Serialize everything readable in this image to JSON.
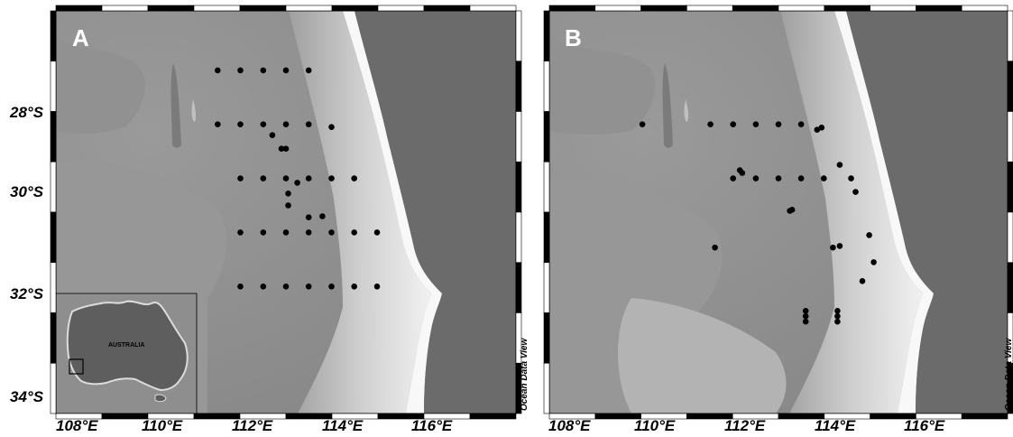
{
  "colors": {
    "ocean_deep": "#8a8a8a",
    "ocean_mid": "#a3a3a3",
    "shelf": "#f4f4f4",
    "land": "#6b6b6b",
    "station": "#000000",
    "frame_dark": "#000000",
    "frame_light": "#ffffff"
  },
  "lat_labels": [
    "28°S",
    "30°S",
    "32°S",
    "34°S"
  ],
  "lon_labels": [
    "108°E",
    "110°E",
    "112°E",
    "114°E",
    "116°E"
  ],
  "credit": "Ocean Data View",
  "panels": [
    {
      "label": "A",
      "inset": {
        "label": "AUSTRALIA"
      },
      "stations": [
        [
          111.5,
          28
        ],
        [
          112,
          28
        ],
        [
          112.5,
          28
        ],
        [
          113,
          28
        ],
        [
          113.5,
          28
        ],
        [
          111.5,
          29
        ],
        [
          112,
          29
        ],
        [
          112.5,
          29
        ],
        [
          112.7,
          29.2
        ],
        [
          112.9,
          29.45
        ],
        [
          113,
          29.45
        ],
        [
          113,
          29
        ],
        [
          113.5,
          29
        ],
        [
          114,
          29.05
        ],
        [
          112,
          30
        ],
        [
          112.5,
          30
        ],
        [
          113,
          30
        ],
        [
          113.25,
          30.08
        ],
        [
          113.5,
          30
        ],
        [
          114,
          30
        ],
        [
          114.5,
          30
        ],
        [
          113.05,
          30.28
        ],
        [
          113.05,
          30.5
        ],
        [
          113.5,
          30.72
        ],
        [
          113.8,
          30.7
        ],
        [
          112,
          31
        ],
        [
          112.5,
          31
        ],
        [
          113,
          31
        ],
        [
          113.5,
          31
        ],
        [
          114,
          31
        ],
        [
          114.5,
          31
        ],
        [
          115,
          31
        ],
        [
          112,
          32
        ],
        [
          112.5,
          32
        ],
        [
          113,
          32
        ],
        [
          113.5,
          32
        ],
        [
          114,
          32
        ],
        [
          114.5,
          32
        ],
        [
          115,
          32
        ]
      ]
    },
    {
      "label": "B",
      "stations": [
        [
          110,
          29
        ],
        [
          111.5,
          29
        ],
        [
          112,
          29
        ],
        [
          112.5,
          29
        ],
        [
          113,
          29
        ],
        [
          113.5,
          29
        ],
        [
          113.85,
          29.1
        ],
        [
          113.95,
          29.06
        ],
        [
          112.15,
          29.85
        ],
        [
          112.2,
          29.9
        ],
        [
          112,
          30
        ],
        [
          112.5,
          30
        ],
        [
          113,
          30
        ],
        [
          113.5,
          30
        ],
        [
          114,
          30
        ],
        [
          114.35,
          29.75
        ],
        [
          114.6,
          30
        ],
        [
          114.7,
          30.25
        ],
        [
          113.25,
          30.6
        ],
        [
          113.3,
          30.58
        ],
        [
          115,
          31.05
        ],
        [
          114.2,
          31.28
        ],
        [
          114.35,
          31.25
        ],
        [
          111.6,
          31.28
        ],
        [
          115.1,
          31.55
        ],
        [
          114.85,
          31.9
        ],
        [
          113.6,
          32.45
        ],
        [
          113.6,
          32.55
        ],
        [
          113.6,
          32.65
        ],
        [
          114.3,
          32.45
        ],
        [
          114.3,
          32.55
        ],
        [
          114.3,
          32.65
        ]
      ]
    }
  ]
}
